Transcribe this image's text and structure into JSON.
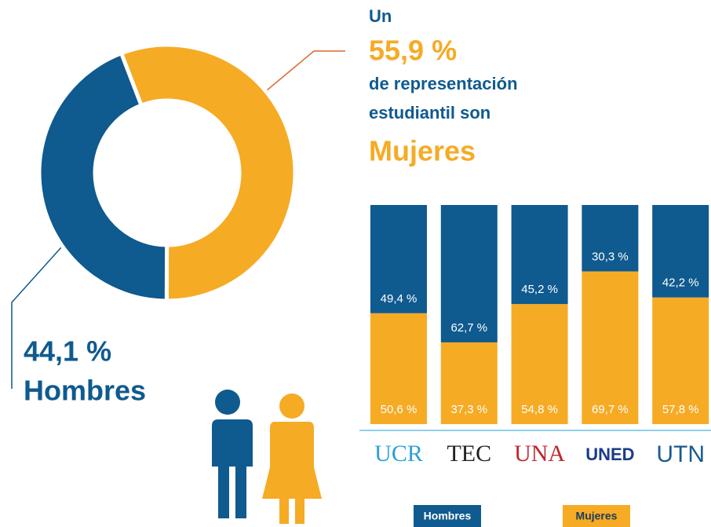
{
  "chart_data": [
    {
      "type": "pie",
      "donut": true,
      "categories": [
        "Mujeres",
        "Hombres"
      ],
      "values": [
        55.9,
        44.1
      ],
      "value_labels": [
        "55,9 %",
        "44,1 %"
      ],
      "colors": [
        "#f6ab25",
        "#0f5a8f"
      ],
      "annotations": [
        "Un",
        "de representación",
        "estudiantil son"
      ]
    },
    {
      "type": "stacked_bar",
      "categories": [
        "UCR",
        "TEC",
        "UNA",
        "UNED",
        "UTN"
      ],
      "ylim": [
        0,
        100
      ],
      "series": [
        {
          "name": "Mujeres",
          "color": "#f6ab25",
          "values": [
            50.6,
            37.3,
            54.8,
            69.7,
            57.8
          ],
          "value_labels": [
            "50,6 %",
            "37,3 %",
            "54,8 %",
            "69,7 %",
            "57,8 %"
          ]
        },
        {
          "name": "Hombres",
          "color": "#0f5a8f",
          "values": [
            49.4,
            62.7,
            45.2,
            30.3,
            42.2
          ],
          "value_labels": [
            "49,4 %",
            "62,7 %",
            "45,2 %",
            "30,3 %",
            "42,2 %"
          ]
        }
      ]
    }
  ]
}
